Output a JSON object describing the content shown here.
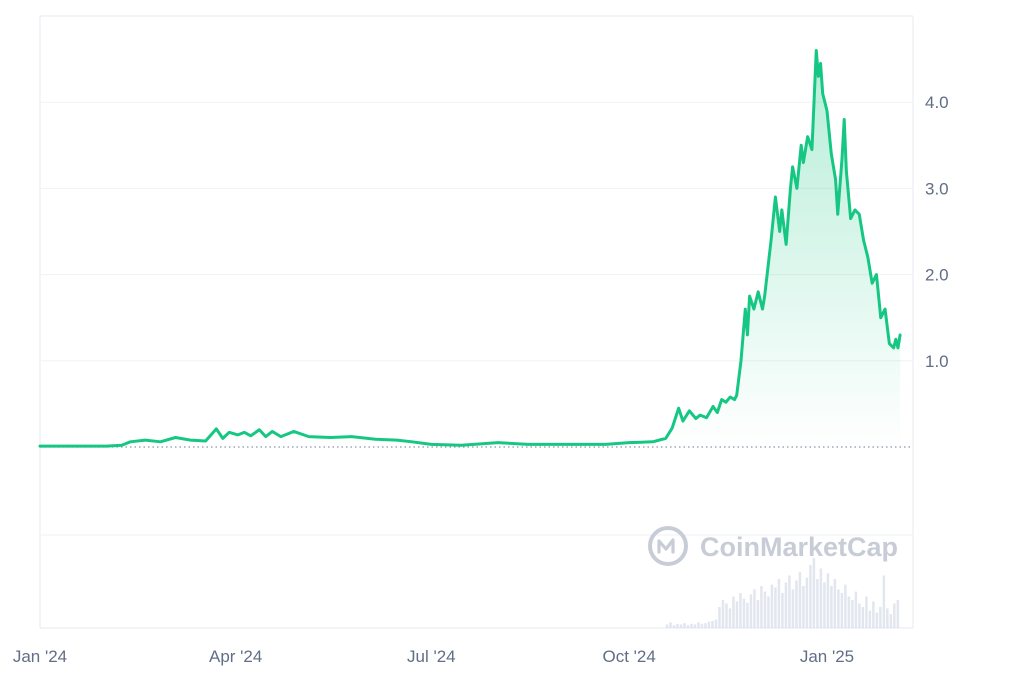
{
  "watermark": "CoinMarketCap",
  "colors": {
    "line": "#16c784",
    "baseline": "#ea3943",
    "grid": "#eff2f5",
    "axis_text": "#616e85",
    "volume": "#cfd6e4"
  },
  "chart_data": {
    "type": "area",
    "title": "",
    "xlabel": "",
    "ylabel": "",
    "ylim": [
      -2.1,
      5.0
    ],
    "baseline": 0.0,
    "grid": "horizontal",
    "y_ticks": [
      "1.0",
      "2.0",
      "3.0",
      "4.0"
    ],
    "y_tick_values": [
      1.0,
      2.0,
      3.0,
      4.0
    ],
    "x_ticks": [
      "Jan '24",
      "Apr '24",
      "Jul '24",
      "Oct '24",
      "Jan '25"
    ],
    "x_tick_dates": [
      "2024-01-01",
      "2024-04-01",
      "2024-07-01",
      "2024-10-01",
      "2025-01-01"
    ],
    "x_range": [
      "2024-01-01",
      "2025-02-14"
    ],
    "series": [
      {
        "points": [
          [
            "2024-01-01",
            0.01
          ],
          [
            "2024-01-15",
            0.01
          ],
          [
            "2024-02-01",
            0.01
          ],
          [
            "2024-02-08",
            0.02
          ],
          [
            "2024-02-12",
            0.06
          ],
          [
            "2024-02-19",
            0.08
          ],
          [
            "2024-02-26",
            0.06
          ],
          [
            "2024-03-04",
            0.11
          ],
          [
            "2024-03-11",
            0.08
          ],
          [
            "2024-03-18",
            0.07
          ],
          [
            "2024-03-23",
            0.21
          ],
          [
            "2024-03-26",
            0.1
          ],
          [
            "2024-03-29",
            0.17
          ],
          [
            "2024-04-02",
            0.14
          ],
          [
            "2024-04-05",
            0.17
          ],
          [
            "2024-04-08",
            0.13
          ],
          [
            "2024-04-12",
            0.2
          ],
          [
            "2024-04-15",
            0.12
          ],
          [
            "2024-04-18",
            0.18
          ],
          [
            "2024-04-22",
            0.12
          ],
          [
            "2024-04-28",
            0.18
          ],
          [
            "2024-05-05",
            0.12
          ],
          [
            "2024-05-15",
            0.11
          ],
          [
            "2024-05-25",
            0.12
          ],
          [
            "2024-06-05",
            0.09
          ],
          [
            "2024-06-15",
            0.08
          ],
          [
            "2024-06-22",
            0.06
          ],
          [
            "2024-07-01",
            0.03
          ],
          [
            "2024-07-15",
            0.02
          ],
          [
            "2024-08-01",
            0.05
          ],
          [
            "2024-08-15",
            0.03
          ],
          [
            "2024-09-01",
            0.03
          ],
          [
            "2024-09-20",
            0.03
          ],
          [
            "2024-10-01",
            0.05
          ],
          [
            "2024-10-12",
            0.06
          ],
          [
            "2024-10-18",
            0.1
          ],
          [
            "2024-10-21",
            0.22
          ],
          [
            "2024-10-24",
            0.45
          ],
          [
            "2024-10-26",
            0.3
          ],
          [
            "2024-10-29",
            0.42
          ],
          [
            "2024-11-01",
            0.33
          ],
          [
            "2024-11-03",
            0.37
          ],
          [
            "2024-11-06",
            0.34
          ],
          [
            "2024-11-09",
            0.47
          ],
          [
            "2024-11-11",
            0.4
          ],
          [
            "2024-11-13",
            0.55
          ],
          [
            "2024-11-15",
            0.52
          ],
          [
            "2024-11-17",
            0.58
          ],
          [
            "2024-11-19",
            0.55
          ],
          [
            "2024-11-20",
            0.6
          ],
          [
            "2024-11-22",
            1.0
          ],
          [
            "2024-11-24",
            1.6
          ],
          [
            "2024-11-25",
            1.3
          ],
          [
            "2024-11-26",
            1.75
          ],
          [
            "2024-11-28",
            1.6
          ],
          [
            "2024-11-30",
            1.8
          ],
          [
            "2024-12-02",
            1.6
          ],
          [
            "2024-12-03",
            1.75
          ],
          [
            "2024-12-06",
            2.4
          ],
          [
            "2024-12-08",
            2.9
          ],
          [
            "2024-12-10",
            2.5
          ],
          [
            "2024-12-11",
            2.75
          ],
          [
            "2024-12-13",
            2.35
          ],
          [
            "2024-12-15",
            3.0
          ],
          [
            "2024-12-16",
            3.25
          ],
          [
            "2024-12-18",
            3.0
          ],
          [
            "2024-12-20",
            3.5
          ],
          [
            "2024-12-21",
            3.3
          ],
          [
            "2024-12-23",
            3.6
          ],
          [
            "2024-12-25",
            3.45
          ],
          [
            "2024-12-27",
            4.6
          ],
          [
            "2024-12-28",
            4.3
          ],
          [
            "2024-12-29",
            4.45
          ],
          [
            "2024-12-30",
            4.1
          ],
          [
            "2025-01-01",
            3.9
          ],
          [
            "2025-01-03",
            3.4
          ],
          [
            "2025-01-05",
            3.1
          ],
          [
            "2025-01-06",
            2.7
          ],
          [
            "2025-01-08",
            3.35
          ],
          [
            "2025-01-09",
            3.8
          ],
          [
            "2025-01-10",
            3.2
          ],
          [
            "2025-01-12",
            2.65
          ],
          [
            "2025-01-14",
            2.75
          ],
          [
            "2025-01-16",
            2.7
          ],
          [
            "2025-01-18",
            2.4
          ],
          [
            "2025-01-20",
            2.2
          ],
          [
            "2025-01-22",
            1.9
          ],
          [
            "2025-01-24",
            2.0
          ],
          [
            "2025-01-26",
            1.5
          ],
          [
            "2025-01-28",
            1.6
          ],
          [
            "2025-01-30",
            1.2
          ],
          [
            "2025-02-01",
            1.15
          ],
          [
            "2025-02-02",
            1.25
          ],
          [
            "2025-02-03",
            1.15
          ],
          [
            "2025-02-04",
            1.3
          ]
        ]
      }
    ],
    "volume": {
      "x_range": [
        "2024-10-18",
        "2025-02-04"
      ],
      "values": [
        0.05,
        0.08,
        0.04,
        0.06,
        0.05,
        0.07,
        0.04,
        0.06,
        0.05,
        0.08,
        0.06,
        0.07,
        0.09,
        0.1,
        0.12,
        0.3,
        0.4,
        0.35,
        0.28,
        0.45,
        0.38,
        0.5,
        0.42,
        0.36,
        0.48,
        0.55,
        0.4,
        0.6,
        0.52,
        0.45,
        0.62,
        0.58,
        0.7,
        0.5,
        0.65,
        0.75,
        0.55,
        0.68,
        0.8,
        0.6,
        0.72,
        0.9,
        1.0,
        0.7,
        0.85,
        0.65,
        0.78,
        0.6,
        0.7,
        0.55,
        0.5,
        0.62,
        0.45,
        0.4,
        0.52,
        0.35,
        0.3,
        0.45,
        0.25,
        0.38,
        0.22,
        0.3,
        0.75,
        0.28,
        0.2,
        0.35,
        0.4
      ]
    }
  }
}
